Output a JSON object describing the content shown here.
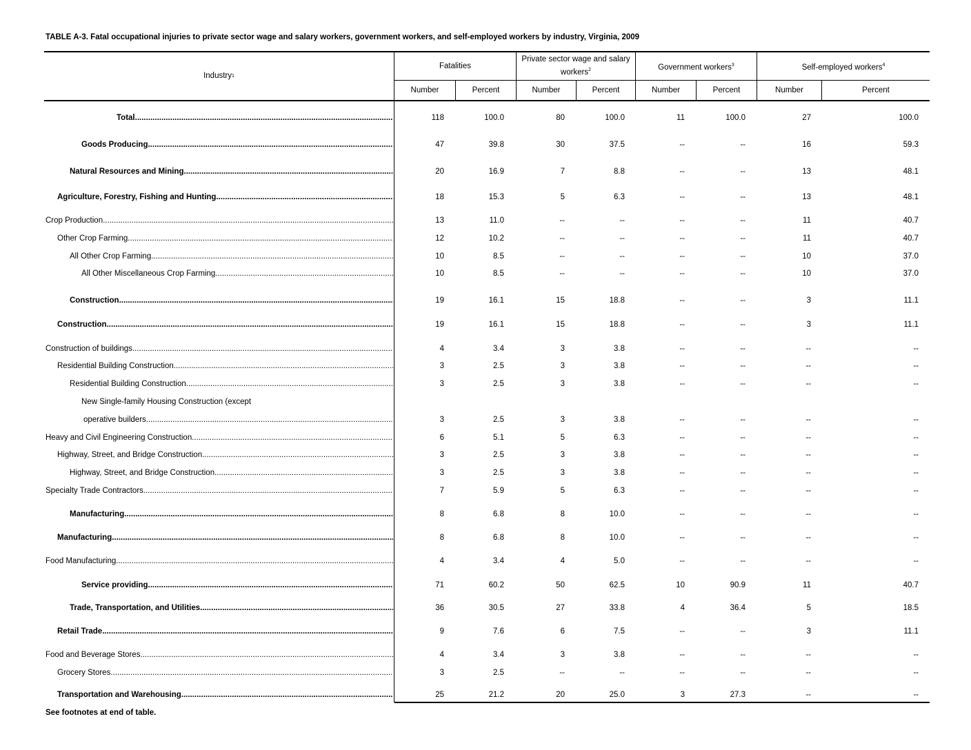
{
  "title": "TABLE A-3. Fatal occupational injuries to private sector wage and salary workers, government workers, and self-employed workers by industry,  Virginia, 2009",
  "footer": "See footnotes at end of table.",
  "header": {
    "industry": "Industry",
    "industry_sup": "1",
    "groups": [
      {
        "label": "Fatalities",
        "sup": ""
      },
      {
        "label": "Private sector wage and salary workers",
        "sup": "2"
      },
      {
        "label": "Government workers",
        "sup": "3"
      },
      {
        "label": "Self-employed workers",
        "sup": "4"
      }
    ],
    "sub": [
      "Number",
      "Percent",
      "Number",
      "Percent",
      "Number",
      "Percent",
      "Number",
      "Percent"
    ]
  },
  "rows": [
    {
      "label": "Total",
      "bold": true,
      "level": "total",
      "values": [
        "118",
        "100.0",
        "80",
        "100.0",
        "11",
        "100.0",
        "27",
        "100.0"
      ]
    },
    {
      "label": "Goods Producing",
      "bold": true,
      "level": 3,
      "values": [
        "47",
        "39.8",
        "30",
        "37.5",
        "--",
        "--",
        "16",
        "59.3"
      ]
    },
    {
      "label": "Natural Resources and Mining",
      "bold": true,
      "level": 2,
      "values": [
        "20",
        "16.9",
        "7",
        "8.8",
        "--",
        "--",
        "13",
        "48.1"
      ]
    },
    {
      "label": "Agriculture, Forestry, Fishing and Hunting",
      "bold": true,
      "level": 1,
      "values": [
        "18",
        "15.3",
        "5",
        "6.3",
        "--",
        "--",
        "13",
        "48.1"
      ]
    },
    {
      "label": "Crop Production",
      "bold": false,
      "level": 0,
      "values": [
        "13",
        "11.0",
        "--",
        "--",
        "--",
        "--",
        "11",
        "40.7"
      ]
    },
    {
      "label": "Other Crop Farming",
      "bold": false,
      "level": 1,
      "values": [
        "12",
        "10.2",
        "--",
        "--",
        "--",
        "--",
        "11",
        "40.7"
      ]
    },
    {
      "label": "All Other Crop Farming",
      "bold": false,
      "level": 2,
      "values": [
        "10",
        "8.5",
        "--",
        "--",
        "--",
        "--",
        "10",
        "37.0"
      ]
    },
    {
      "label": "All Other Miscellaneous Crop Farming",
      "bold": false,
      "level": 3,
      "values": [
        "10",
        "8.5",
        "--",
        "--",
        "--",
        "--",
        "10",
        "37.0"
      ]
    },
    {
      "label": "Construction",
      "bold": true,
      "level": 2,
      "values": [
        "19",
        "16.1",
        "15",
        "18.8",
        "--",
        "--",
        "3",
        "11.1"
      ]
    },
    {
      "label": "Construction",
      "bold": true,
      "level": 1,
      "values": [
        "19",
        "16.1",
        "15",
        "18.8",
        "--",
        "--",
        "3",
        "11.1"
      ]
    },
    {
      "label": "Construction of buildings",
      "bold": false,
      "level": 0,
      "values": [
        "4",
        "3.4",
        "3",
        "3.8",
        "--",
        "--",
        "--",
        "--"
      ]
    },
    {
      "label": "Residential Building Construction",
      "bold": false,
      "level": 1,
      "values": [
        "3",
        "2.5",
        "3",
        "3.8",
        "--",
        "--",
        "--",
        "--"
      ]
    },
    {
      "label": "Residential Building Construction",
      "bold": false,
      "level": 2,
      "values": [
        "3",
        "2.5",
        "3",
        "3.8",
        "--",
        "--",
        "--",
        "--"
      ]
    },
    {
      "label": "New Single-family Housing Construction (except",
      "bold": false,
      "level": 3,
      "nodots": true,
      "values": []
    },
    {
      "label": " operative builders",
      "bold": false,
      "level": 3,
      "values": [
        "3",
        "2.5",
        "3",
        "3.8",
        "--",
        "--",
        "--",
        "--"
      ]
    },
    {
      "label": "Heavy and Civil Engineering Construction",
      "bold": false,
      "level": 0,
      "values": [
        "6",
        "5.1",
        "5",
        "6.3",
        "--",
        "--",
        "--",
        "--"
      ]
    },
    {
      "label": "Highway, Street, and Bridge Construction",
      "bold": false,
      "level": 1,
      "values": [
        "3",
        "2.5",
        "3",
        "3.8",
        "--",
        "--",
        "--",
        "--"
      ]
    },
    {
      "label": "Highway, Street, and Bridge Construction",
      "bold": false,
      "level": 2,
      "values": [
        "3",
        "2.5",
        "3",
        "3.8",
        "--",
        "--",
        "--",
        "--"
      ]
    },
    {
      "label": "Specialty Trade Contractors",
      "bold": false,
      "level": 0,
      "values": [
        "7",
        "5.9",
        "5",
        "6.3",
        "--",
        "--",
        "--",
        "--"
      ]
    },
    {
      "label": "Manufacturing",
      "bold": true,
      "level": 2,
      "values": [
        "8",
        "6.8",
        "8",
        "10.0",
        "--",
        "--",
        "--",
        "--"
      ]
    },
    {
      "label": "Manufacturing",
      "bold": true,
      "level": 1,
      "values": [
        "8",
        "6.8",
        "8",
        "10.0",
        "--",
        "--",
        "--",
        "--"
      ]
    },
    {
      "label": "Food Manufacturing",
      "bold": false,
      "level": 0,
      "values": [
        "4",
        "3.4",
        "4",
        "5.0",
        "--",
        "--",
        "--",
        "--"
      ]
    },
    {
      "label": "Service providing",
      "bold": true,
      "level": 3,
      "values": [
        "71",
        "60.2",
        "50",
        "62.5",
        "10",
        "90.9",
        "11",
        "40.7"
      ]
    },
    {
      "label": "Trade, Transportation, and Utilities",
      "bold": true,
      "level": 2,
      "values": [
        "36",
        "30.5",
        "27",
        "33.8",
        "4",
        "36.4",
        "5",
        "18.5"
      ]
    },
    {
      "label": "Retail Trade",
      "bold": true,
      "level": 1,
      "values": [
        "9",
        "7.6",
        "6",
        "7.5",
        "--",
        "--",
        "3",
        "11.1"
      ]
    },
    {
      "label": "Food and Beverage Stores",
      "bold": false,
      "level": 0,
      "values": [
        "4",
        "3.4",
        "3",
        "3.8",
        "--",
        "--",
        "--",
        "--"
      ]
    },
    {
      "label": "Grocery Stores",
      "bold": false,
      "level": 1,
      "values": [
        "3",
        "2.5",
        "--",
        "--",
        "--",
        "--",
        "--",
        "--"
      ]
    },
    {
      "label": "Transportation and Warehousing",
      "bold": true,
      "level": 1,
      "values": [
        "25",
        "21.2",
        "20",
        "25.0",
        "3",
        "27.3",
        "--",
        "--"
      ]
    }
  ]
}
